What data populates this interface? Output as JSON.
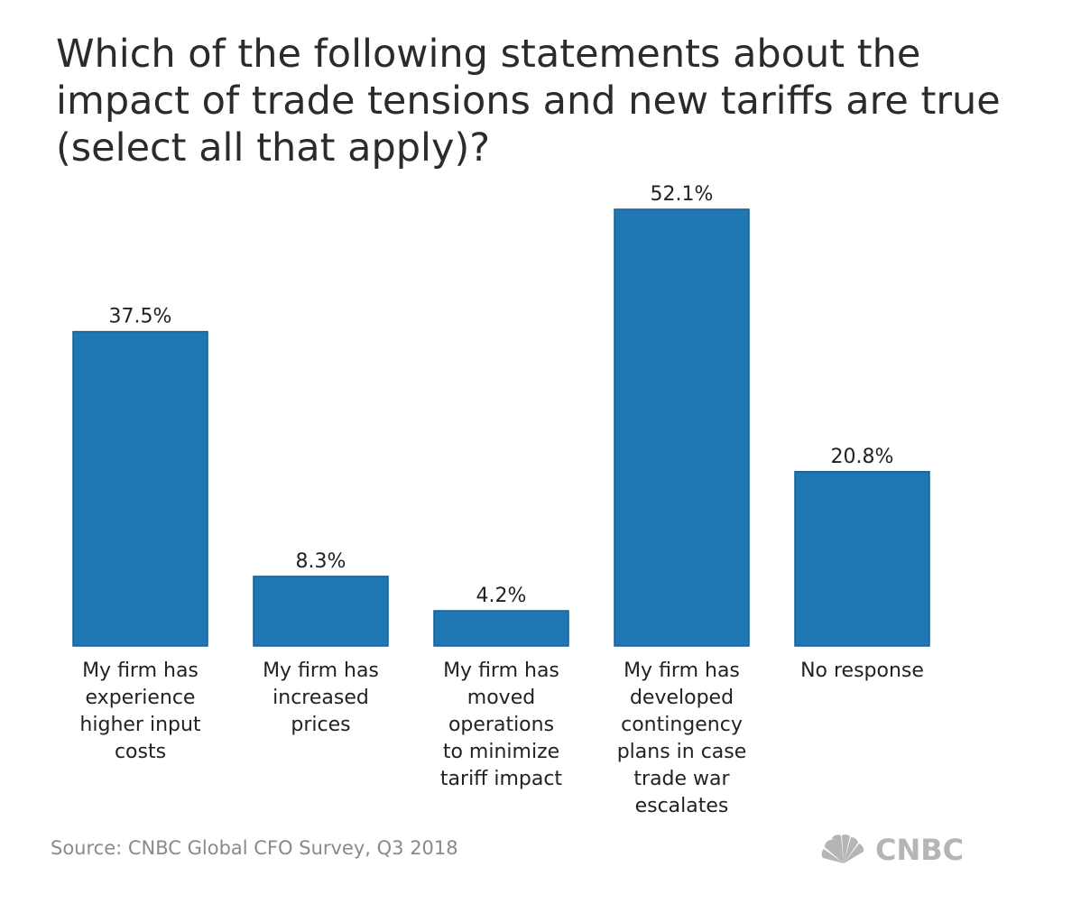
{
  "title_lines": [
    "Which of the following statements about the",
    "impact of trade tensions and new tariffs are true",
    "(select all that apply)?"
  ],
  "source": "Source: CNBC Global CFO Survey, Q3 2018",
  "logo_text": "CNBC",
  "colors": {
    "bar": "#1f77b4",
    "bar_edge": "#1a5f94",
    "logo": "#b5b5b5"
  },
  "chart_data": {
    "type": "bar",
    "title": "Which of the following statements about the impact of trade tensions and new tariffs are true (select all that apply)?",
    "categories": [
      [
        "My firm has",
        "experience",
        "higher input",
        "costs"
      ],
      [
        "My firm has",
        "increased",
        "prices"
      ],
      [
        "My firm has",
        "moved",
        "operations",
        "to minimize",
        "tariff impact"
      ],
      [
        "My firm has",
        "developed",
        "contingency",
        "plans in case",
        "trade war",
        "escalates"
      ],
      [
        "No response"
      ]
    ],
    "values": [
      37.5,
      8.3,
      4.2,
      52.1,
      20.8
    ],
    "value_labels": [
      "37.5%",
      "8.3%",
      "4.2%",
      "52.1%",
      "20.8%"
    ],
    "unit": "%",
    "ylim": [
      0,
      52.1
    ],
    "grid": false,
    "legend": "none"
  }
}
